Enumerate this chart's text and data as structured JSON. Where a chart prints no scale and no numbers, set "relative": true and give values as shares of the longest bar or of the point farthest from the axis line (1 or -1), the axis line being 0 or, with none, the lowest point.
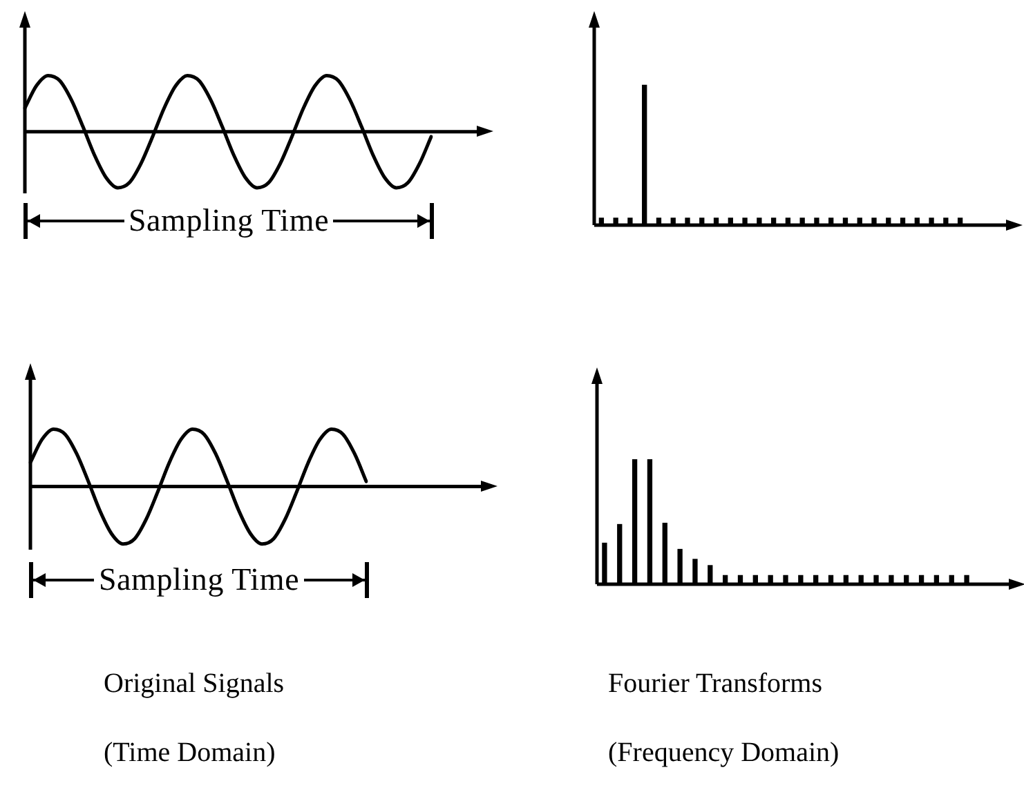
{
  "chart_data": [
    {
      "type": "line",
      "relative": true,
      "color": "#000000",
      "xlabel": "Sampling Time",
      "categories": [
        null,
        null,
        null,
        null,
        null,
        null,
        null,
        null,
        null,
        null,
        null,
        null,
        null,
        null,
        null,
        null,
        null,
        null,
        null,
        null,
        null,
        null,
        null,
        null,
        null,
        null,
        null,
        null,
        null,
        null,
        null,
        null,
        null,
        null,
        null,
        null
      ],
      "values": [
        0.42,
        0.82,
        1,
        0.91,
        0.57,
        0.09,
        -0.42,
        -0.82,
        -1,
        -0.91,
        -0.57,
        -0.09,
        0.42,
        0.82,
        1,
        0.91,
        0.57,
        0.09,
        -0.42,
        -0.82,
        -1,
        -0.91,
        -0.57,
        -0.09,
        0.42,
        0.82,
        1,
        0.91,
        0.57,
        0.09,
        -0.42,
        -0.82,
        -1,
        -0.91,
        -0.57,
        -0.09
      ]
    },
    {
      "type": "bar",
      "relative": true,
      "color": "#000000",
      "categories": [
        null,
        null,
        null,
        null,
        null,
        null,
        null,
        null,
        null,
        null,
        null,
        null,
        null,
        null,
        null,
        null,
        null,
        null,
        null,
        null,
        null,
        null,
        null,
        null,
        null,
        null
      ],
      "values": [
        0.05,
        0.05,
        0.05,
        1,
        0.05,
        0.05,
        0.05,
        0.05,
        0.05,
        0.05,
        0.05,
        0.05,
        0.05,
        0.05,
        0.05,
        0.05,
        0.05,
        0.05,
        0.05,
        0.05,
        0.05,
        0.05,
        0.05,
        0.05,
        0.05,
        0.05
      ]
    },
    {
      "type": "line",
      "relative": true,
      "color": "#000000",
      "xlabel": "Sampling Time",
      "annotations": [
        "Original Signals",
        "(Time Domain)"
      ],
      "categories": [
        null,
        null,
        null,
        null,
        null,
        null,
        null,
        null,
        null,
        null,
        null,
        null,
        null,
        null,
        null,
        null,
        null,
        null,
        null,
        null,
        null,
        null,
        null,
        null,
        null,
        null,
        null,
        null,
        null,
        null
      ],
      "values": [
        0.42,
        0.82,
        1,
        0.91,
        0.57,
        0.09,
        -0.42,
        -0.82,
        -1,
        -0.91,
        -0.57,
        -0.09,
        0.42,
        0.82,
        1,
        0.91,
        0.57,
        0.09,
        -0.42,
        -0.82,
        -1,
        -0.91,
        -0.57,
        -0.09,
        0.42,
        0.82,
        1,
        0.91,
        0.57,
        0.09
      ]
    },
    {
      "type": "bar",
      "relative": true,
      "color": "#000000",
      "annotations": [
        "Fourier Transforms",
        "(Frequency Domain)"
      ],
      "categories": [
        null,
        null,
        null,
        null,
        null,
        null,
        null,
        null,
        null,
        null,
        null,
        null,
        null,
        null,
        null,
        null,
        null,
        null,
        null,
        null,
        null,
        null,
        null,
        null,
        null
      ],
      "values": [
        0.33,
        0.48,
        1,
        1,
        0.49,
        0.28,
        0.2,
        0.15,
        0.07,
        0.07,
        0.07,
        0.07,
        0.07,
        0.07,
        0.07,
        0.07,
        0.07,
        0.07,
        0.07,
        0.07,
        0.07,
        0.07,
        0.07,
        0.07,
        0.07
      ]
    }
  ]
}
